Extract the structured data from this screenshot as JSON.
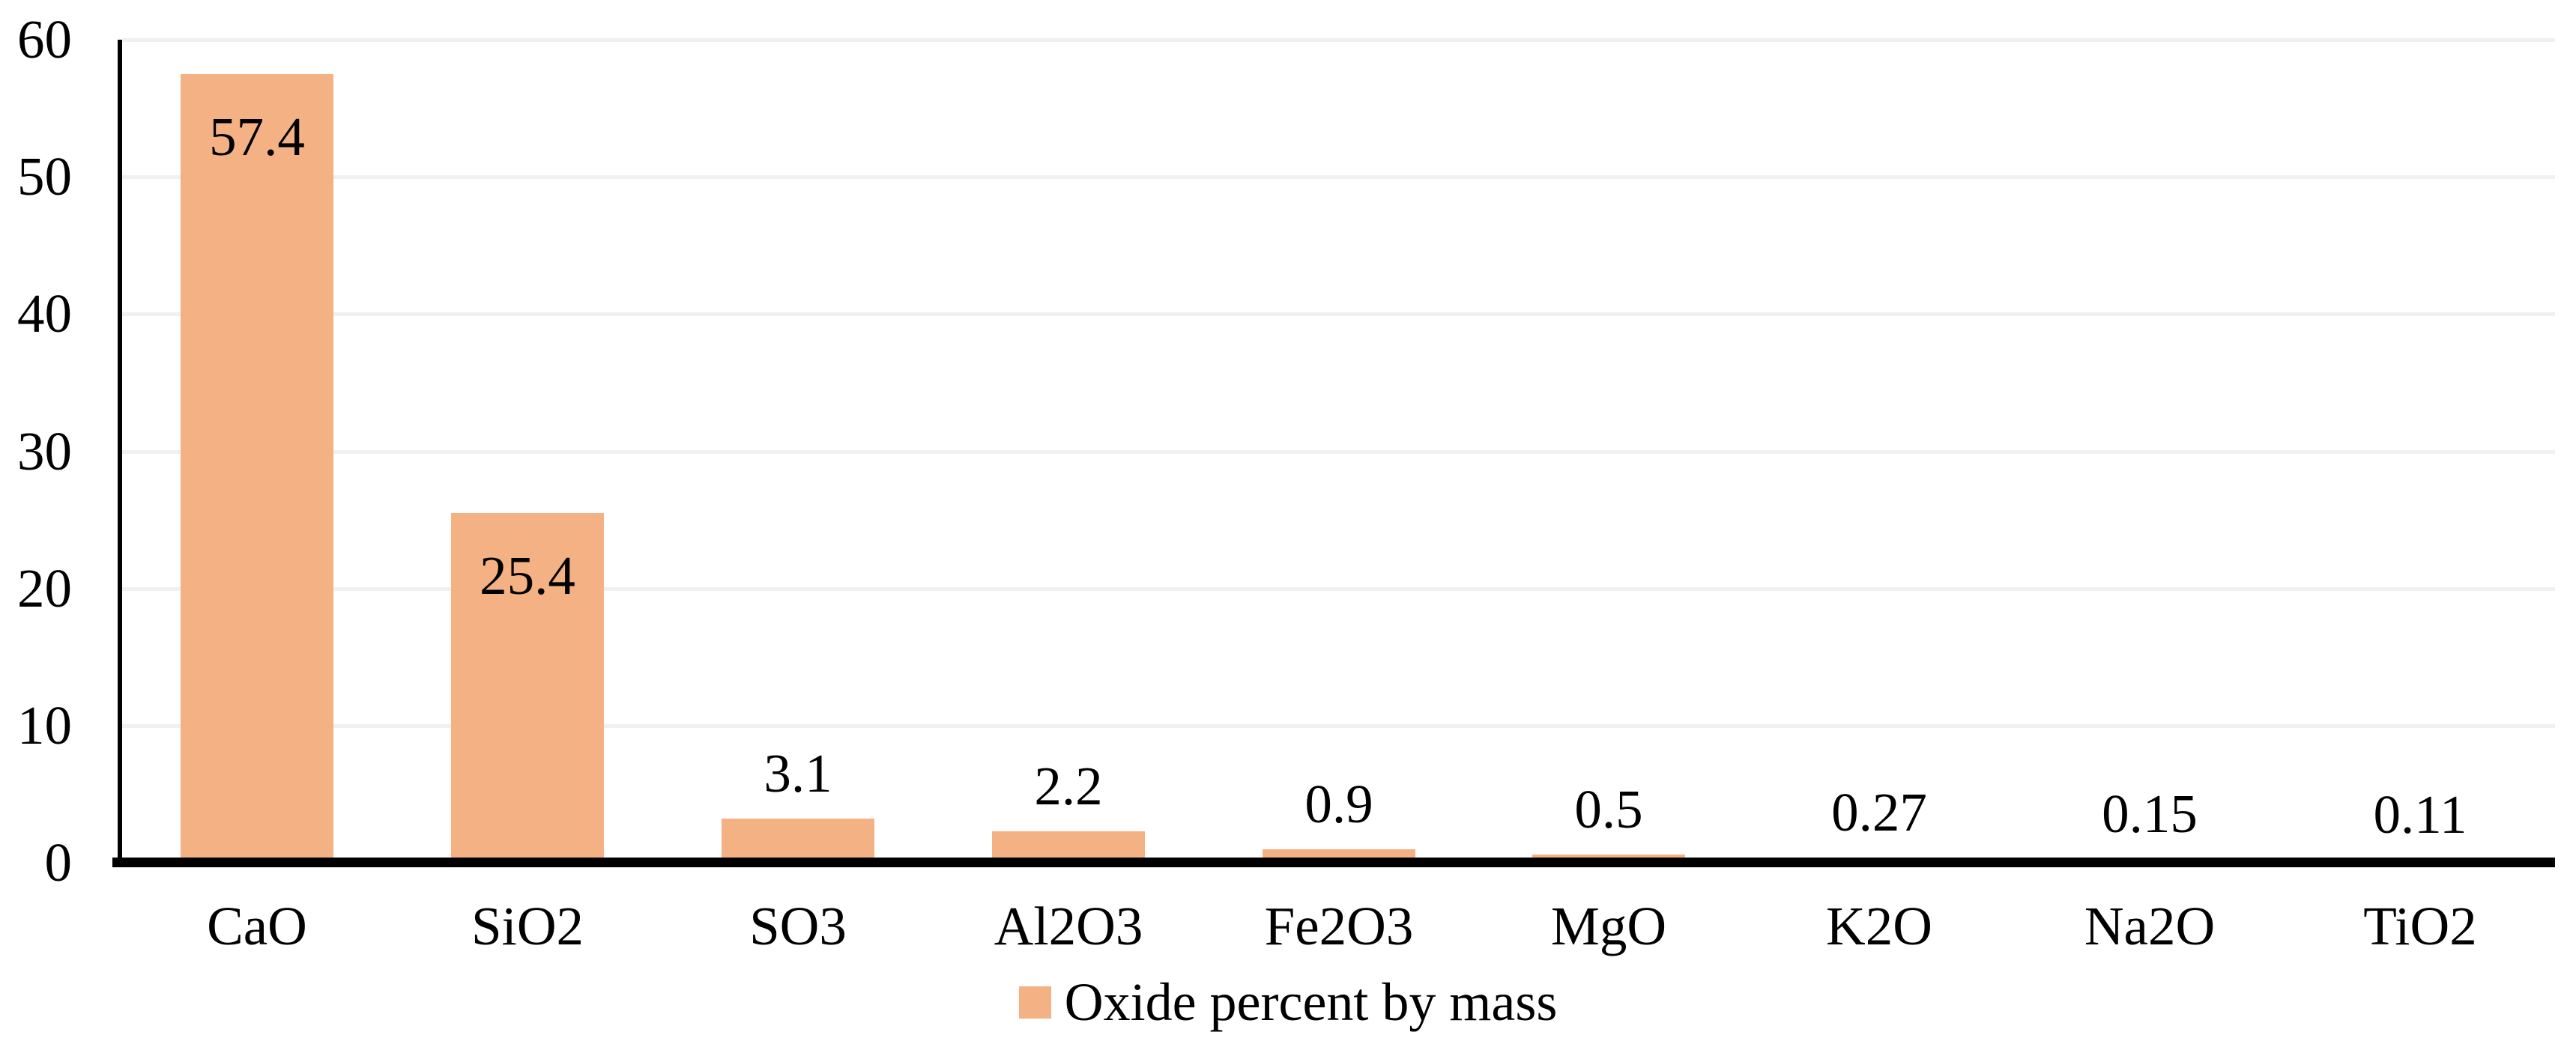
{
  "chart_data": {
    "type": "bar",
    "title": "",
    "xlabel": "",
    "ylabel": "",
    "categories": [
      "CaO",
      "SiO2",
      "SO3",
      "Al2O3",
      "Fe2O3",
      "MgO",
      "K2O",
      "Na2O",
      "TiO2"
    ],
    "values": [
      57.4,
      25.4,
      3.1,
      2.2,
      0.9,
      0.5,
      0.27,
      0.15,
      0.11
    ],
    "value_labels": [
      "57.4",
      "25.4",
      "3.1",
      "2.2",
      "0.9",
      "0.5",
      "0.27",
      "0.15",
      "0.11"
    ],
    "value_label_inside_bar": [
      true,
      true,
      false,
      false,
      false,
      false,
      false,
      false,
      false
    ],
    "series": [
      {
        "name": "Oxide percent by mass",
        "values": [
          57.4,
          25.4,
          3.1,
          2.2,
          0.9,
          0.5,
          0.27,
          0.15,
          0.11
        ]
      }
    ],
    "ylim": [
      0,
      60
    ],
    "yticks": [
      0,
      10,
      20,
      30,
      40,
      50,
      60
    ],
    "ytick_labels": [
      "0",
      "10",
      "20",
      "30",
      "40",
      "50",
      "60"
    ],
    "grid": "horizontal",
    "legend_position": "bottom-center",
    "colors": {
      "bar_fill": "#F4B183",
      "gridline": "#F0F0F0",
      "axis_line": "#000000",
      "text": "#000000",
      "background": "#FFFFFF"
    }
  },
  "legend": {
    "items": [
      {
        "label": "Oxide percent by mass",
        "swatch_color": "#F4B183"
      }
    ]
  }
}
